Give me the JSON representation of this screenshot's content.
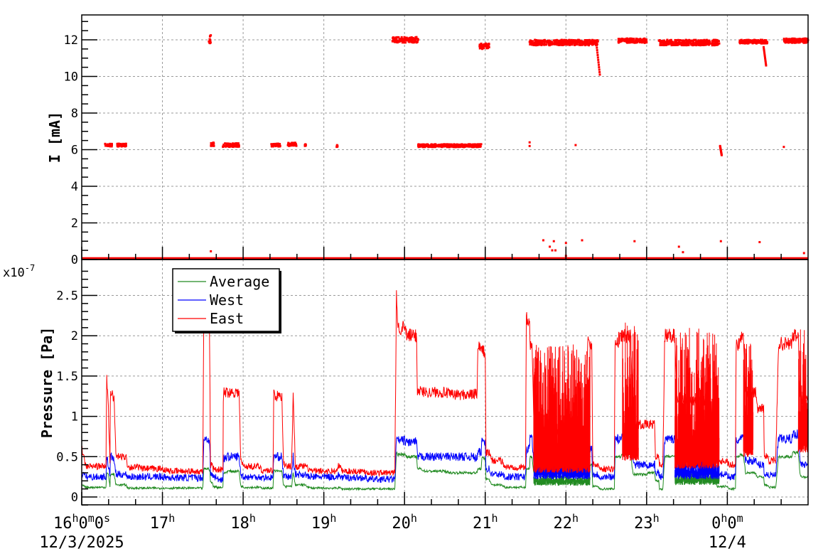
{
  "chart_data": [
    {
      "id": "current",
      "type": "scatter",
      "title": "",
      "xlabel": "",
      "ylabel": "I [mA]",
      "ylim": [
        0,
        13.3
      ],
      "yticks": [
        0,
        2,
        4,
        6,
        8,
        10,
        12
      ],
      "xlim_hours": [
        16,
        25.0
      ],
      "grid": true,
      "marker_color": "#ff0000",
      "note": "Beam current, approximate clusters (time in hours since 00:00 12/3/2025; 24 = 0h 12/4)",
      "clusters": [
        {
          "t0": 16.0,
          "t1": 25.0,
          "y": 0.05,
          "spread": 0.03,
          "density": 1.0
        },
        {
          "t0": 16.29,
          "t1": 16.38,
          "y": 6.25,
          "spread": 0.08
        },
        {
          "t0": 16.44,
          "t1": 16.55,
          "y": 6.25,
          "spread": 0.08
        },
        {
          "t0": 17.57,
          "t1": 17.6,
          "y": 12.0,
          "spread": 0.25
        },
        {
          "t0": 17.6,
          "t1": 17.64,
          "y": 6.3,
          "spread": 0.1
        },
        {
          "t0": 17.75,
          "t1": 17.95,
          "y": 6.25,
          "spread": 0.1
        },
        {
          "t0": 18.35,
          "t1": 18.46,
          "y": 6.25,
          "spread": 0.08
        },
        {
          "t0": 18.55,
          "t1": 18.66,
          "y": 6.3,
          "spread": 0.1
        },
        {
          "t0": 18.76,
          "t1": 18.78,
          "y": 6.25,
          "spread": 0.05
        },
        {
          "t0": 19.15,
          "t1": 19.17,
          "y": 6.2,
          "spread": 0.05
        },
        {
          "t0": 19.85,
          "t1": 20.17,
          "y": 12.0,
          "spread": 0.15
        },
        {
          "t0": 20.17,
          "t1": 20.95,
          "y": 6.22,
          "spread": 0.08
        },
        {
          "t0": 20.93,
          "t1": 21.05,
          "y": 11.65,
          "spread": 0.15
        },
        {
          "t0": 21.55,
          "t1": 22.4,
          "y": 11.85,
          "spread": 0.15
        },
        {
          "t0": 22.65,
          "t1": 23.0,
          "y": 11.95,
          "spread": 0.12
        },
        {
          "t0": 23.15,
          "t1": 23.9,
          "y": 11.85,
          "spread": 0.15
        },
        {
          "t0": 24.15,
          "t1": 24.5,
          "y": 11.9,
          "spread": 0.1
        },
        {
          "t0": 24.7,
          "t1": 25.0,
          "y": 11.95,
          "spread": 0.12
        }
      ],
      "drops": [
        {
          "t0": 22.38,
          "y0": 11.7,
          "t1": 22.42,
          "y1": 10.1
        },
        {
          "t0": 24.45,
          "y0": 11.6,
          "t1": 24.48,
          "y1": 10.6
        },
        {
          "t0": 23.91,
          "y0": 6.2,
          "t1": 23.93,
          "y1": 5.7
        }
      ],
      "isolated_points": [
        [
          21.55,
          6.4
        ],
        [
          21.55,
          6.2
        ],
        [
          22.12,
          6.25
        ],
        [
          24.7,
          6.15
        ],
        [
          17.6,
          0.45
        ],
        [
          21.72,
          1.05
        ],
        [
          21.85,
          1.0
        ],
        [
          21.8,
          0.7
        ],
        [
          21.83,
          0.5
        ],
        [
          21.87,
          0.5
        ],
        [
          22.0,
          0.2
        ],
        [
          22.2,
          1.05
        ],
        [
          22.0,
          0.9
        ],
        [
          22.85,
          1.0
        ],
        [
          23.4,
          0.7
        ],
        [
          23.45,
          0.4
        ],
        [
          23.92,
          1.0
        ],
        [
          24.4,
          0.95
        ],
        [
          24.95,
          0.35
        ]
      ]
    },
    {
      "id": "pressure",
      "type": "line",
      "title": "",
      "xlabel": "",
      "ylabel": "Pressure [Pa]",
      "y_multiplier": "x10^-7",
      "ylim": [
        -0.1,
        2.95
      ],
      "yticks": [
        0,
        0.5,
        1,
        1.5,
        2,
        2.5
      ],
      "ytick_labels": [
        "0",
        "0.5",
        "1",
        "1.5",
        "2",
        "2.5"
      ],
      "grid": true,
      "legend_position": "upper-left",
      "x_hours": [
        16.0,
        16.3,
        16.31,
        16.33,
        16.35,
        16.38,
        16.4,
        16.55,
        16.56,
        16.7,
        17.0,
        17.5,
        17.58,
        17.59,
        17.62,
        17.66,
        17.75,
        17.78,
        17.95,
        17.97,
        18.2,
        18.37,
        18.38,
        18.48,
        18.5,
        18.6,
        18.62,
        18.78,
        18.8,
        19.17,
        19.18,
        19.5,
        19.88,
        19.9,
        20.0,
        20.15,
        20.2,
        20.5,
        20.86,
        20.9,
        20.95,
        21.0,
        21.05,
        21.2,
        21.5,
        21.55,
        21.58,
        21.7,
        22.0,
        22.25,
        22.27,
        22.32,
        22.4,
        22.5,
        22.6,
        22.65,
        22.68,
        22.8,
        23.0,
        23.1,
        23.15,
        23.2,
        23.35,
        23.5,
        23.8,
        23.85,
        24.0,
        24.1,
        24.15,
        24.2,
        24.35,
        24.45,
        24.5,
        24.6,
        24.8,
        24.88,
        24.9,
        25.0
      ],
      "series": [
        {
          "name": "Average",
          "color": "#228b22",
          "values": [
            0.15,
            0.12,
            0.3,
            0.28,
            0.12,
            0.28,
            0.28,
            0.15,
            0.12,
            0.11,
            0.11,
            0.11,
            0.35,
            0.32,
            0.18,
            0.13,
            0.12,
            0.3,
            0.32,
            0.14,
            0.12,
            0.11,
            0.33,
            0.32,
            0.15,
            0.13,
            0.3,
            0.15,
            0.12,
            0.11,
            0.12,
            0.1,
            0.1,
            0.55,
            0.53,
            0.5,
            0.35,
            0.32,
            0.3,
            0.3,
            0.35,
            0.48,
            0.22,
            0.15,
            0.12,
            0.35,
            0.5,
            0.3,
            0.25,
            0.27,
            0.45,
            0.4,
            0.13,
            0.1,
            0.1,
            0.5,
            0.5,
            0.53,
            0.28,
            0.3,
            0.2,
            0.1,
            0.5,
            0.28,
            0.28,
            0.2,
            0.13,
            0.1,
            0.5,
            0.52,
            0.3,
            0.25,
            0.15,
            0.12,
            0.5,
            0.55,
            0.3,
            0.25
          ]
        },
        {
          "name": "West",
          "color": "#0000ff",
          "values": [
            0.3,
            0.25,
            0.5,
            0.4,
            0.25,
            0.5,
            0.45,
            0.28,
            0.27,
            0.25,
            0.25,
            0.24,
            0.72,
            0.5,
            0.28,
            0.25,
            0.22,
            0.48,
            0.5,
            0.28,
            0.25,
            0.24,
            0.52,
            0.5,
            0.27,
            0.25,
            0.5,
            0.28,
            0.25,
            0.25,
            0.27,
            0.24,
            0.22,
            0.72,
            0.7,
            0.68,
            0.5,
            0.5,
            0.5,
            0.48,
            0.55,
            0.7,
            0.35,
            0.28,
            0.25,
            0.6,
            0.75,
            0.4,
            0.35,
            0.35,
            0.7,
            0.6,
            0.28,
            0.25,
            0.25,
            0.72,
            0.7,
            0.75,
            0.4,
            0.4,
            0.3,
            0.25,
            0.72,
            0.42,
            0.4,
            0.3,
            0.28,
            0.25,
            0.7,
            0.72,
            0.45,
            0.4,
            0.28,
            0.27,
            0.72,
            0.78,
            0.45,
            0.4
          ]
        },
        {
          "name": "East",
          "color": "#ff0000",
          "values": [
            0.6,
            0.38,
            1.5,
            1.1,
            0.42,
            1.3,
            1.2,
            0.5,
            0.42,
            0.37,
            0.35,
            0.32,
            2.3,
            1.35,
            0.4,
            0.35,
            0.34,
            1.3,
            1.3,
            0.45,
            0.38,
            0.33,
            1.3,
            1.25,
            0.45,
            0.38,
            1.3,
            0.38,
            0.35,
            0.32,
            0.4,
            0.32,
            0.3,
            2.55,
            2.1,
            2.0,
            1.32,
            1.3,
            1.27,
            1.28,
            1.85,
            1.8,
            0.55,
            0.45,
            0.37,
            2.2,
            1.9,
            1.0,
            0.8,
            0.8,
            2.0,
            1.9,
            0.4,
            0.35,
            0.35,
            1.9,
            1.98,
            2.0,
            0.9,
            0.9,
            0.5,
            0.4,
            2.0,
            1.2,
            1.2,
            0.8,
            0.45,
            0.4,
            1.9,
            2.0,
            1.3,
            1.1,
            0.5,
            0.45,
            1.9,
            2.0,
            1.3,
            1.2
          ]
        }
      ],
      "noise_bands": [
        {
          "series": "East",
          "t0": 21.6,
          "t1": 22.3,
          "low": 0.3,
          "high": 1.9
        },
        {
          "series": "East",
          "t0": 22.7,
          "t1": 22.9,
          "low": 0.45,
          "high": 2.2
        },
        {
          "series": "East",
          "t0": 23.35,
          "t1": 23.9,
          "low": 0.35,
          "high": 2.1
        },
        {
          "series": "East",
          "t0": 24.2,
          "t1": 24.32,
          "low": 0.5,
          "high": 2.0
        },
        {
          "series": "East",
          "t0": 24.88,
          "t1": 25.0,
          "low": 0.55,
          "high": 2.1
        },
        {
          "series": "West",
          "t0": 21.6,
          "t1": 22.3,
          "low": 0.22,
          "high": 0.45
        },
        {
          "series": "West",
          "t0": 23.35,
          "t1": 23.9,
          "low": 0.22,
          "high": 0.5
        },
        {
          "series": "Average",
          "t0": 21.6,
          "t1": 22.3,
          "low": 0.14,
          "high": 0.26
        },
        {
          "series": "Average",
          "t0": 23.35,
          "t1": 23.9,
          "low": 0.15,
          "high": 0.3
        }
      ]
    }
  ],
  "x_axis": {
    "tick_labels": [
      {
        "hour": 16,
        "main": "16",
        "sup": "h",
        "rest": "0",
        "sup2": "m",
        "rest2": "0",
        "sup3": "s"
      },
      {
        "hour": 17,
        "main": "17",
        "sup": "h"
      },
      {
        "hour": 18,
        "main": "18",
        "sup": "h"
      },
      {
        "hour": 19,
        "main": "19",
        "sup": "h"
      },
      {
        "hour": 20,
        "main": "20",
        "sup": "h"
      },
      {
        "hour": 21,
        "main": "21",
        "sup": "h"
      },
      {
        "hour": 22,
        "main": "22",
        "sup": "h"
      },
      {
        "hour": 23,
        "main": "23",
        "sup": "h"
      },
      {
        "hour": 24,
        "main": "0",
        "sup": "h",
        "rest": "0",
        "sup2": "m"
      }
    ],
    "date_labels": [
      {
        "hour": 16,
        "text": "12/3/2025"
      },
      {
        "hour": 24,
        "text": "12/4"
      }
    ]
  },
  "labels": {
    "top_ylabel": "I [mA]",
    "bottom_ylabel": "Pressure [Pa]",
    "multiplier_base": "x10",
    "multiplier_exp": "-7"
  },
  "legend": [
    {
      "label": "Average",
      "color": "#228b22"
    },
    {
      "label": "West",
      "color": "#0000ff"
    },
    {
      "label": "East",
      "color": "#ff0000"
    }
  ]
}
